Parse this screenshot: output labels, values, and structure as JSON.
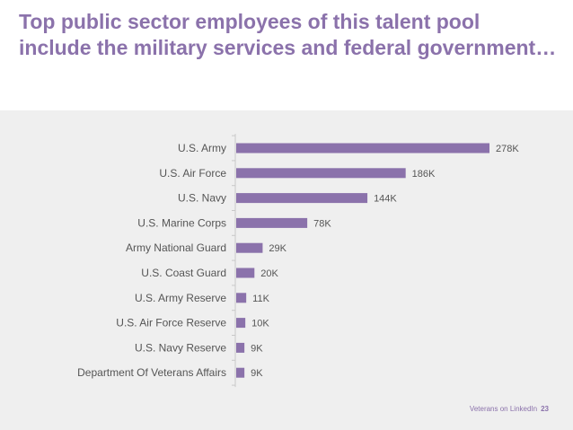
{
  "title": {
    "part1": "Top public sector employees of this talent pool include the ",
    "bold1": "military services",
    "part2": " and ",
    "bold2": "federal government",
    "part3": "…"
  },
  "footer": {
    "source": "Veterans on LinkedIn",
    "page": "23"
  },
  "colors": {
    "accent": "#8b72ab",
    "panel": "#efefef",
    "axis": "#c8c8c8",
    "text": "#555555"
  },
  "chart_data": {
    "type": "bar",
    "orientation": "horizontal",
    "categories": [
      "U.S. Army",
      "U.S. Air Force",
      "U.S. Navy",
      "U.S. Marine Corps",
      "Army National Guard",
      "U.S. Coast Guard",
      "U.S. Army Reserve",
      "U.S. Air Force Reserve",
      "U.S. Navy Reserve",
      "Department Of Veterans Affairs"
    ],
    "values": [
      278,
      186,
      144,
      78,
      29,
      20,
      11,
      10,
      9,
      9
    ],
    "labels": [
      "278K",
      "186K",
      "144K",
      "78K",
      "29K",
      "20K",
      "11K",
      "10K",
      "9K",
      "9K"
    ],
    "unit": "K",
    "xlim": [
      0,
      278
    ],
    "grid": false
  }
}
